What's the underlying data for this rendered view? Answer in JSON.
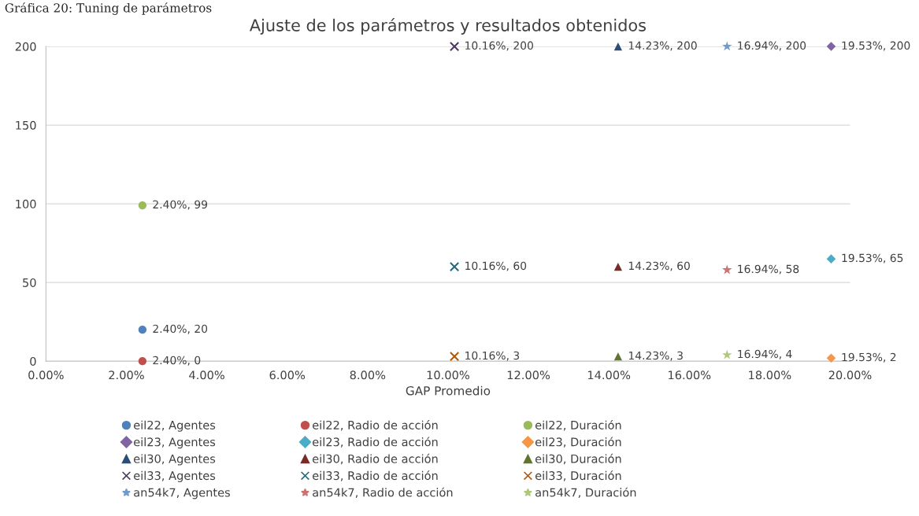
{
  "chart_data": {
    "type": "scatter",
    "title": "Ajuste de los parámetros y resultados obtenidos",
    "xlabel": "GAP Promedio",
    "annotations": [
      "Gráfica 20: Tuning de parámetros"
    ],
    "xlim": [
      0,
      20
    ],
    "ylim": [
      0,
      200
    ],
    "xticks": [
      {
        "value": 0,
        "label": "0.00%"
      },
      {
        "value": 2,
        "label": "2.00%"
      },
      {
        "value": 4,
        "label": "4.00%"
      },
      {
        "value": 6,
        "label": "6.00%"
      },
      {
        "value": 8,
        "label": "8.00%"
      },
      {
        "value": 10,
        "label": "10.00%"
      },
      {
        "value": 12,
        "label": "12.00%"
      },
      {
        "value": 14,
        "label": "14.00%"
      },
      {
        "value": 16,
        "label": "16.00%"
      },
      {
        "value": 18,
        "label": "18.00%"
      },
      {
        "value": 20,
        "label": "20.00%"
      }
    ],
    "yticks": [
      0,
      50,
      100,
      150,
      200
    ],
    "grid": "y",
    "legend": "bottom",
    "series": [
      {
        "name": "eil22, Agentes",
        "color": "#4f81bd",
        "marker": "circle",
        "x": [
          2.4
        ],
        "values": [
          20
        ],
        "value_labels": [
          "2.40%, 20"
        ]
      },
      {
        "name": "eil22, Radio de acción",
        "color": "#c0504d",
        "marker": "circle",
        "x": [
          2.4
        ],
        "values": [
          0
        ],
        "value_labels": [
          "2.40%, 0"
        ]
      },
      {
        "name": "eil22, Duración",
        "color": "#9bbb59",
        "marker": "circle",
        "x": [
          2.4
        ],
        "values": [
          99
        ],
        "value_labels": [
          "2.40%, 99"
        ]
      },
      {
        "name": "eil23, Agentes",
        "color": "#8064a2",
        "marker": "diamond",
        "x": [
          19.53
        ],
        "values": [
          200
        ],
        "value_labels": [
          "19.53%, 200"
        ]
      },
      {
        "name": "eil23, Radio de acción",
        "color": "#4bacc6",
        "marker": "diamond",
        "x": [
          19.53
        ],
        "values": [
          65
        ],
        "value_labels": [
          "19.53%, 65"
        ]
      },
      {
        "name": "eil23, Duración",
        "color": "#f79646",
        "marker": "diamond",
        "x": [
          19.53
        ],
        "values": [
          2
        ],
        "value_labels": [
          "19.53%, 2"
        ]
      },
      {
        "name": "eil30, Agentes",
        "color": "#2c4d75",
        "marker": "triangle",
        "x": [
          14.23
        ],
        "values": [
          200
        ],
        "value_labels": [
          "14.23%, 200"
        ]
      },
      {
        "name": "eil30, Radio de acción",
        "color": "#772c2a",
        "marker": "triangle",
        "x": [
          14.23
        ],
        "values": [
          60
        ],
        "value_labels": [
          "14.23%, 60"
        ]
      },
      {
        "name": "eil30, Duración",
        "color": "#5f7530",
        "marker": "triangle",
        "x": [
          14.23
        ],
        "values": [
          3
        ],
        "value_labels": [
          "14.23%, 3"
        ]
      },
      {
        "name": "eil33, Agentes",
        "color": "#4d3b62",
        "marker": "cross",
        "x": [
          10.16
        ],
        "values": [
          200
        ],
        "value_labels": [
          "10.16%, 200"
        ]
      },
      {
        "name": "eil33, Radio de acción",
        "color": "#276a7c",
        "marker": "cross",
        "x": [
          10.16
        ],
        "values": [
          60
        ],
        "value_labels": [
          "10.16%, 60"
        ]
      },
      {
        "name": "eil33, Duración",
        "color": "#b65708",
        "marker": "cross",
        "x": [
          10.16
        ],
        "values": [
          3
        ],
        "value_labels": [
          "10.16%, 3"
        ]
      },
      {
        "name": "an54k7, Agentes",
        "color": "#729aca",
        "marker": "star",
        "x": [
          16.94
        ],
        "values": [
          200
        ],
        "value_labels": [
          "16.94%, 200"
        ]
      },
      {
        "name": "an54k7, Radio de acción",
        "color": "#cd7371",
        "marker": "star",
        "x": [
          16.94
        ],
        "values": [
          58
        ],
        "value_labels": [
          "16.94%, 58"
        ]
      },
      {
        "name": "an54k7, Duración",
        "color": "#afc97a",
        "marker": "star",
        "x": [
          16.94
        ],
        "values": [
          4
        ],
        "value_labels": [
          "16.94%, 4"
        ]
      }
    ]
  }
}
